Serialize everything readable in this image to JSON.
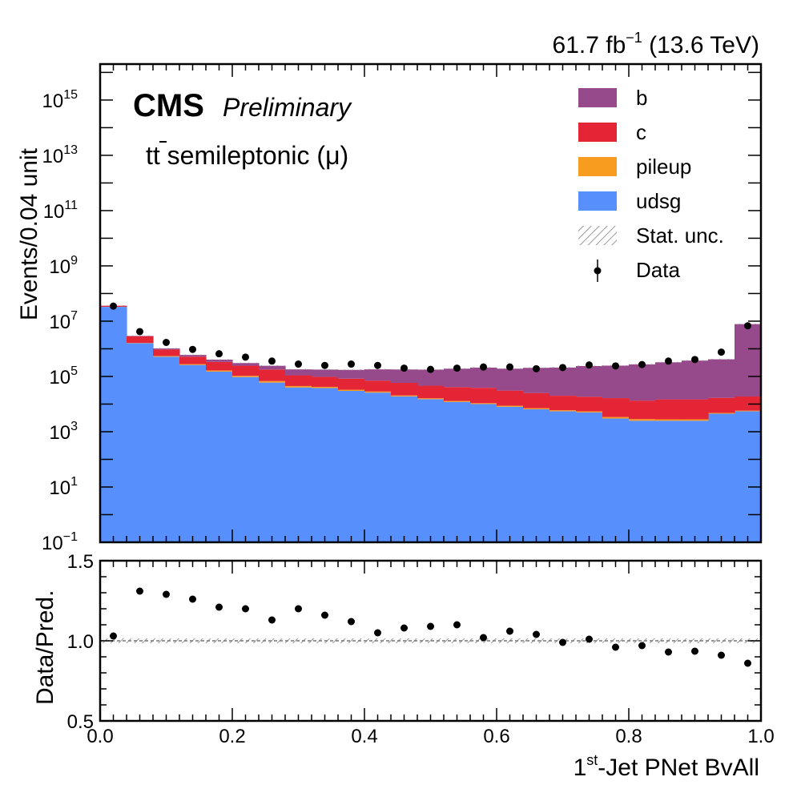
{
  "header": {
    "lumi_value": "61.7 fb",
    "lumi_sup": "−1",
    "lumi_energy": " (13.6 TeV)",
    "cms": "CMS",
    "preliminary": "Preliminary",
    "process_tt": "tt",
    "process_rest": " semileptonic (μ)"
  },
  "axes": {
    "ylabel_top": "Events/0.04 unit",
    "ylabel_bottom": "Data/Pred.",
    "xlabel_pre": "1",
    "xlabel_sup": "st",
    "xlabel_post": "-Jet PNet BvAll"
  },
  "colors": {
    "b": "#964a8b",
    "c": "#e42536",
    "pileup": "#f89c20",
    "udsg": "#5790fc",
    "data": "#000000",
    "unc": "#9a9a9a"
  },
  "chart_data": [
    {
      "type": "bar",
      "stacked": true,
      "yscale": "log",
      "xlim": [
        0.0,
        1.0
      ],
      "ylim": [
        0.1,
        2e+16
      ],
      "bin_edges": [
        0.0,
        0.04,
        0.08,
        0.12,
        0.16,
        0.2,
        0.24,
        0.28,
        0.32,
        0.36,
        0.4,
        0.44,
        0.48,
        0.52,
        0.56,
        0.6,
        0.64,
        0.68,
        0.72,
        0.76,
        0.8,
        0.84,
        0.88,
        0.92,
        0.96,
        1.0
      ],
      "series": [
        {
          "name": "udsg",
          "values": [
            33000000.0,
            1600000.0,
            520000.0,
            260000.0,
            150000.0,
            95000.0,
            60000.0,
            40000.0,
            38000.0,
            30000.0,
            26000.0,
            19000.0,
            15000.0,
            12000.0,
            10000.0,
            8000.0,
            6500.0,
            5500.0,
            5000.0,
            3000.0,
            2500.0,
            2500.0,
            2500.0,
            4500.0,
            5500.0
          ]
        },
        {
          "name": "pileup",
          "values": [
            200000.0,
            40000.0,
            30000.0,
            20000.0,
            15000.0,
            10000.0,
            8000.0,
            5000.0,
            4000.0,
            3000.0,
            2500.0,
            1500.0,
            1200.0,
            1000.0,
            800,
            700,
            600,
            500,
            450,
            400,
            350,
            300,
            300,
            300,
            300
          ]
        },
        {
          "name": "c",
          "values": [
            3000000.0,
            1200000.0,
            400000.0,
            240000.0,
            170000.0,
            140000.0,
            110000.0,
            65000.0,
            55000.0,
            50000.0,
            42000.0,
            38000.0,
            30000.0,
            28000.0,
            28000.0,
            22000.0,
            18000.0,
            14000.0,
            13000.0,
            13000.0,
            10500.0,
            12000.0,
            12000.0,
            12000.0,
            13000.0
          ]
        },
        {
          "name": "b",
          "values": [
            100000.0,
            100000.0,
            80000.0,
            80000.0,
            70000.0,
            60000.0,
            65000.0,
            70000.0,
            80000.0,
            90000.0,
            110000.0,
            120000.0,
            130000.0,
            150000.0,
            170000.0,
            160000.0,
            180000.0,
            190000.0,
            220000.0,
            230000.0,
            260000.0,
            310000.0,
            360000.0,
            400000.0,
            7800000.0
          ]
        }
      ],
      "data_points": {
        "name": "Data",
        "x": [
          0.02,
          0.06,
          0.1,
          0.14,
          0.18,
          0.22,
          0.26,
          0.3,
          0.34,
          0.38,
          0.42,
          0.46,
          0.5,
          0.54,
          0.58,
          0.62,
          0.66,
          0.7,
          0.74,
          0.78,
          0.82,
          0.86,
          0.9,
          0.94,
          0.98
        ],
        "y": [
          35000000.0,
          4200000.0,
          1700000.0,
          950000.0,
          660000.0,
          500000.0,
          360000.0,
          280000.0,
          250000.0,
          280000.0,
          250000.0,
          200000.0,
          180000.0,
          200000.0,
          220000.0,
          220000.0,
          190000.0,
          210000.0,
          260000.0,
          240000.0,
          270000.0,
          360000.0,
          410000.0,
          760000.0,
          6800000.0
        ]
      },
      "legend": [
        "b",
        "c",
        "pileup",
        "udsg",
        "Stat. unc.",
        "Data"
      ],
      "legend_position": "top-right",
      "ytick_labels": [
        {
          "base": "10",
          "exp": "15"
        },
        {
          "base": "10",
          "exp": "13"
        },
        {
          "base": "10",
          "exp": "11"
        },
        {
          "base": "10",
          "exp": "9"
        },
        {
          "base": "10",
          "exp": "7"
        },
        {
          "base": "10",
          "exp": "5"
        },
        {
          "base": "10",
          "exp": "3"
        },
        {
          "base": "10",
          "exp": "1"
        },
        {
          "base": "10",
          "exp": "−1"
        }
      ],
      "ytick_exponents": [
        15,
        13,
        11,
        9,
        7,
        5,
        3,
        1,
        -1
      ]
    },
    {
      "type": "scatter",
      "xlim": [
        0.0,
        1.0
      ],
      "ylim": [
        0.5,
        1.5
      ],
      "reference_line": 1.0,
      "x": [
        0.02,
        0.06,
        0.1,
        0.14,
        0.18,
        0.22,
        0.26,
        0.3,
        0.34,
        0.38,
        0.42,
        0.46,
        0.5,
        0.54,
        0.58,
        0.62,
        0.66,
        0.7,
        0.74,
        0.78,
        0.82,
        0.86,
        0.9,
        0.94,
        0.98
      ],
      "y": [
        1.03,
        1.31,
        1.29,
        1.26,
        1.21,
        1.2,
        1.13,
        1.2,
        1.16,
        1.12,
        1.05,
        1.08,
        1.09,
        1.1,
        1.02,
        1.06,
        1.04,
        0.99,
        1.01,
        0.96,
        0.97,
        0.93,
        0.935,
        0.91,
        0.86
      ],
      "yticks": [
        "1.5",
        "1.0",
        "0.5"
      ],
      "ytick_values": [
        1.5,
        1.0,
        0.5
      ],
      "xticks": [
        "0.0",
        "0.2",
        "0.4",
        "0.6",
        "0.8",
        "1.0"
      ],
      "xtick_values": [
        0.0,
        0.2,
        0.4,
        0.6,
        0.8,
        1.0
      ]
    }
  ]
}
